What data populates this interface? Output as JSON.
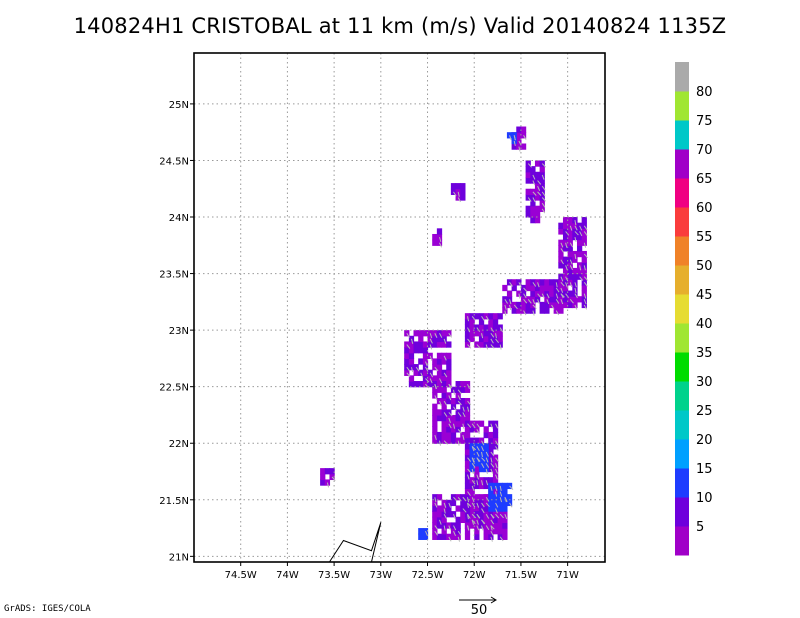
{
  "chart_data": {
    "type": "heatmap",
    "title": "140824H1 CRISTOBAL at 11 km (m/s) Valid 20140824 1135Z",
    "xlabel": "",
    "ylabel": "",
    "lon_range": [
      -75.0,
      -70.6
    ],
    "lat_range": [
      20.95,
      25.45
    ],
    "x_ticks": [
      "74.5W",
      "74W",
      "73.5W",
      "73W",
      "72.5W",
      "72W",
      "71.5W",
      "71W"
    ],
    "x_tick_values": [
      -74.5,
      -74.0,
      -73.5,
      -73.0,
      -72.5,
      -72.0,
      -71.5,
      -71.0
    ],
    "y_ticks": [
      "21N",
      "21.5N",
      "22N",
      "22.5N",
      "23N",
      "23.5N",
      "24N",
      "24.5N",
      "25N"
    ],
    "y_tick_values": [
      21.0,
      21.5,
      22.0,
      22.5,
      23.0,
      23.5,
      24.0,
      24.5,
      25.0
    ],
    "grid": true,
    "colorbar": {
      "labels": [
        "5",
        "10",
        "15",
        "20",
        "25",
        "30",
        "35",
        "40",
        "45",
        "50",
        "55",
        "60",
        "65",
        "70",
        "75",
        "80"
      ],
      "colors": [
        "#a000c8",
        "#6e00dc",
        "#1e3cff",
        "#00a0ff",
        "#00c8c8",
        "#00d28c",
        "#00dc00",
        "#a0e632",
        "#e6dc32",
        "#e6af2d",
        "#f08228",
        "#fa3c3c",
        "#f00082",
        "#a000c8",
        "#00c8c8",
        "#a0e632",
        "#aaaaaa"
      ]
    },
    "wind_field_regions": [
      {
        "lon": [
          -72.75,
          -72.25
        ],
        "lat": [
          22.5,
          23.0
        ],
        "speed": 5
      },
      {
        "lon": [
          -72.45,
          -72.05
        ],
        "lat": [
          22.0,
          22.55
        ],
        "speed": 5
      },
      {
        "lon": [
          -72.1,
          -71.75
        ],
        "lat": [
          21.25,
          22.2
        ],
        "speed": 5
      },
      {
        "lon": [
          -72.45,
          -71.65
        ],
        "lat": [
          21.15,
          21.55
        ],
        "speed": 5
      },
      {
        "lon": [
          -72.1,
          -71.7
        ],
        "lat": [
          22.85,
          23.15
        ],
        "speed": 5
      },
      {
        "lon": [
          -71.7,
          -71.05
        ],
        "lat": [
          23.15,
          23.45
        ],
        "speed": 5
      },
      {
        "lon": [
          -71.1,
          -70.8
        ],
        "lat": [
          23.2,
          24.0
        ],
        "speed": 5
      },
      {
        "lon": [
          -71.45,
          -71.25
        ],
        "lat": [
          23.95,
          24.5
        ],
        "speed": 5
      },
      {
        "lon": [
          -71.6,
          -71.45
        ],
        "lat": [
          24.6,
          24.8
        ],
        "speed": 5
      },
      {
        "lon": [
          -72.25,
          -72.1
        ],
        "lat": [
          24.15,
          24.3
        ],
        "speed": 5
      },
      {
        "lon": [
          -72.45,
          -72.35
        ],
        "lat": [
          23.75,
          23.88
        ],
        "speed": 5
      },
      {
        "lon": [
          -73.65,
          -73.5
        ],
        "lat": [
          21.63,
          21.75
        ],
        "speed": 5
      }
    ],
    "wind_field_regions_10": [
      {
        "lon": [
          -72.05,
          -71.85
        ],
        "lat": [
          21.75,
          22.0
        ],
        "speed": 10
      },
      {
        "lon": [
          -71.85,
          -71.6
        ],
        "lat": [
          21.4,
          21.65
        ],
        "speed": 10
      },
      {
        "lon": [
          -72.6,
          -72.5
        ],
        "lat": [
          21.15,
          21.25
        ],
        "speed": 10
      },
      {
        "lon": [
          -71.65,
          -71.55
        ],
        "lat": [
          24.65,
          24.75
        ],
        "speed": 10
      }
    ],
    "reference_vector": {
      "label": "50"
    },
    "annotation": "GrADS: IGES/COLA"
  }
}
